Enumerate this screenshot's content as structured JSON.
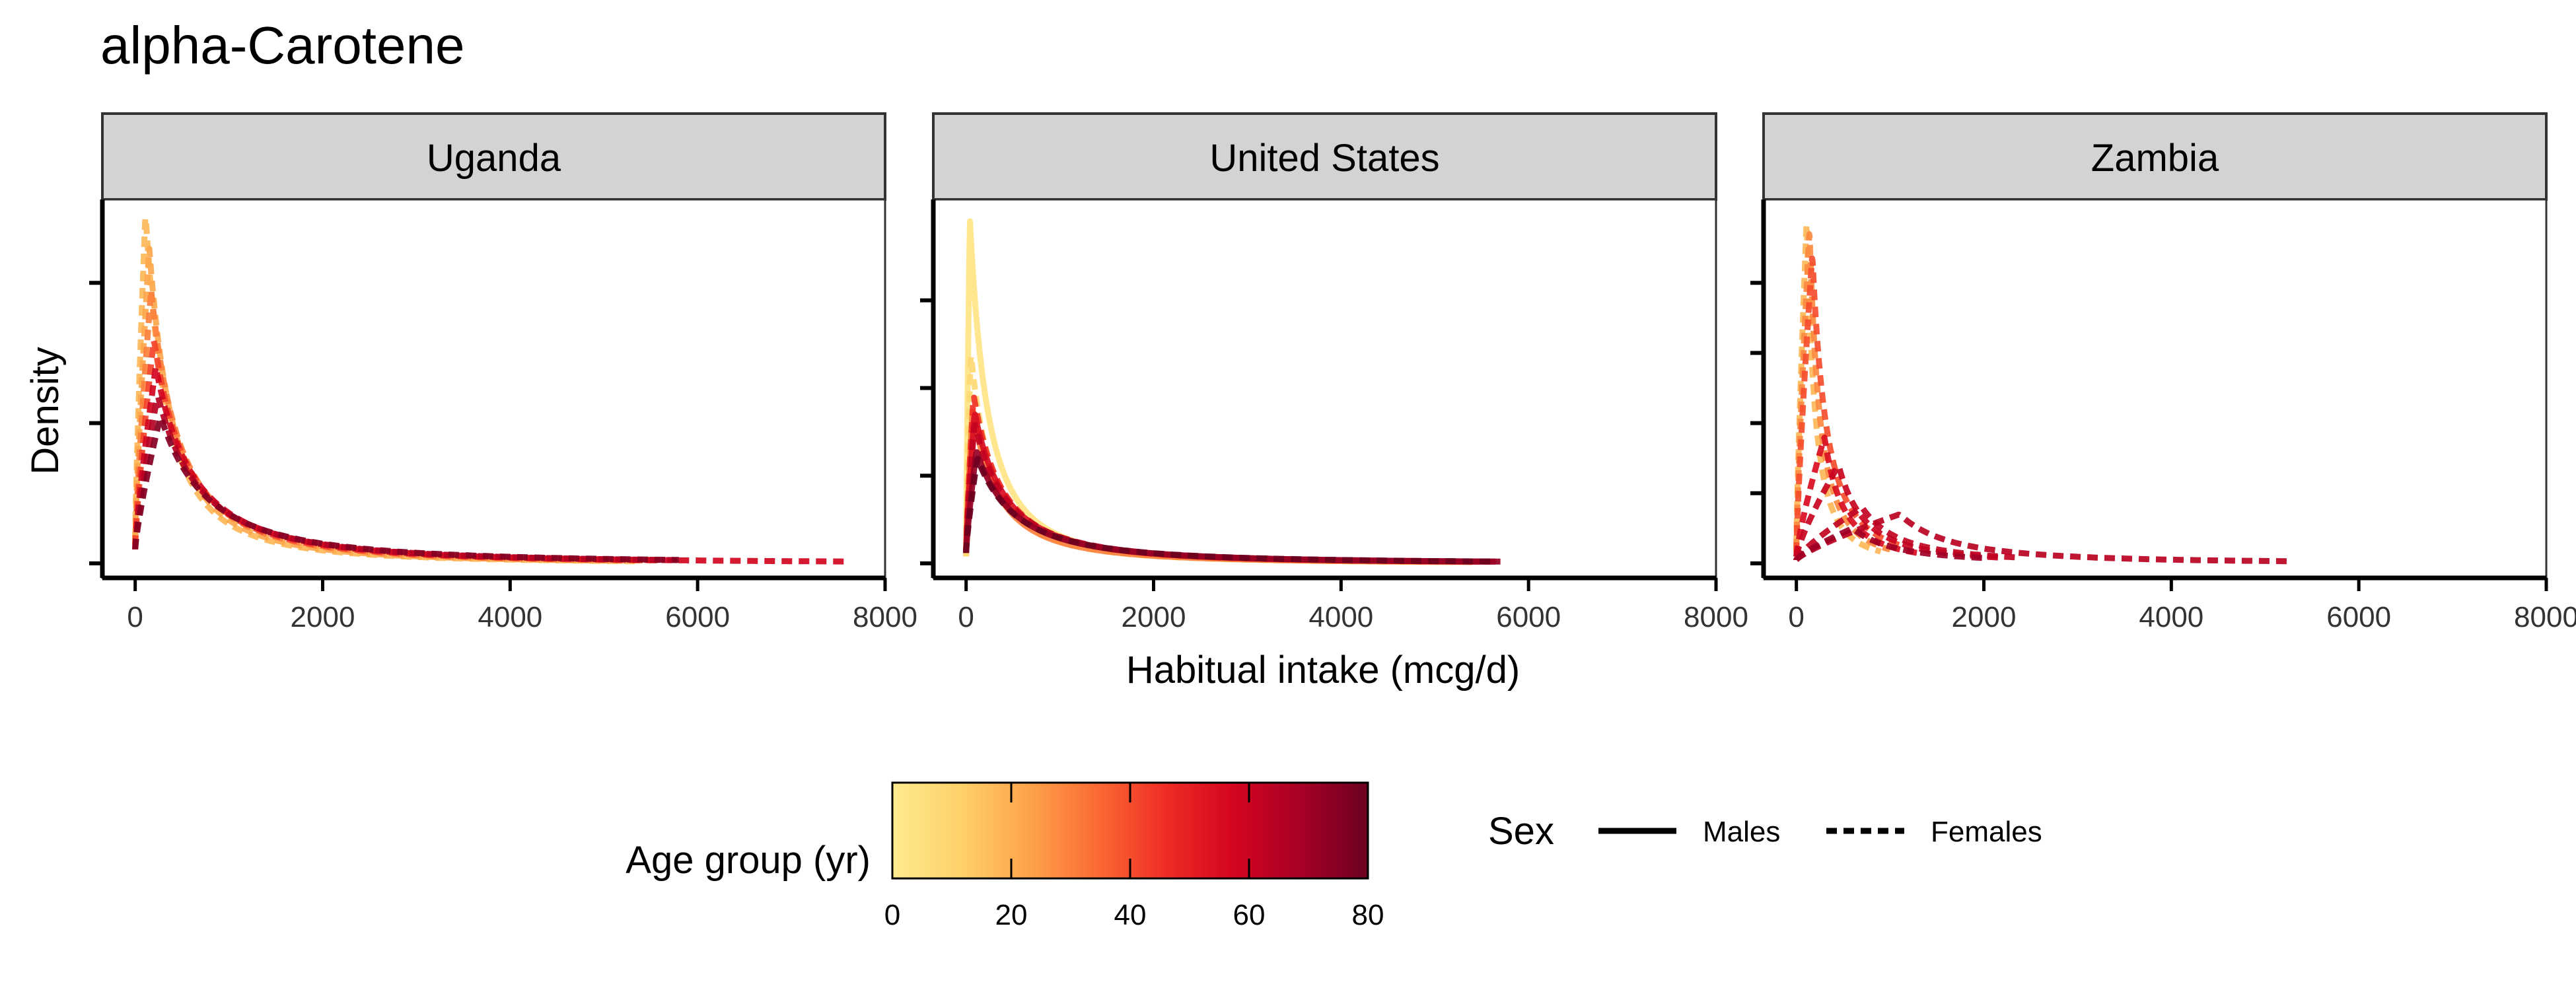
{
  "chart_data": {
    "type": "line",
    "title": "alpha-Carotene",
    "xlabel": "Habitual intake (mcg/d)",
    "ylabel": "Density",
    "xlim": [
      -350,
      8000
    ],
    "x_ticks": [
      0,
      2000,
      4000,
      6000,
      8000
    ],
    "grid": false,
    "colors": {
      "strip_fill": "#d3d3d3",
      "axis": "#000000",
      "gradient": [
        "#ffeb8e",
        "#fed16a",
        "#fda44a",
        "#fb6b34",
        "#ef2e25",
        "#d4051f",
        "#a80026",
        "#6b0020"
      ]
    },
    "legend": {
      "position": "bottom",
      "age_title": "Age group (yr)",
      "age_ticks": [
        0,
        20,
        40,
        60,
        80
      ],
      "age_range": [
        0,
        80
      ],
      "sex_title": "Sex",
      "sex_entries": [
        {
          "label": "Males",
          "linetype": "solid"
        },
        {
          "label": "Females",
          "linetype": "dashed"
        }
      ]
    },
    "panels": [
      {
        "name": "Uganda",
        "ylim": [
          0,
          1.0
        ],
        "y_ticks": [
          0,
          0.4,
          0.8
        ],
        "series": [
          {
            "age": 18,
            "sex": "Females",
            "peak_x": 110,
            "peak": 1.0,
            "start": 0.07,
            "tail": 0.45,
            "xmax": 5400
          },
          {
            "age": 22,
            "sex": "Females",
            "peak_x": 150,
            "peak": 0.9,
            "start": 0.06,
            "tail": 0.5,
            "xmax": 5200
          },
          {
            "age": 30,
            "sex": "Females",
            "peak_x": 170,
            "peak": 0.78,
            "start": 0.05,
            "tail": 0.6,
            "xmax": 5500
          },
          {
            "age": 42,
            "sex": "Females",
            "peak_x": 200,
            "peak": 0.64,
            "start": 0.05,
            "tail": 0.7,
            "xmax": 5600
          },
          {
            "age": 58,
            "sex": "Females",
            "peak_x": 220,
            "peak": 0.56,
            "start": 0.04,
            "tail": 0.8,
            "xmax": 7600
          },
          {
            "age": 65,
            "sex": "Females",
            "peak_x": 240,
            "peak": 0.48,
            "start": 0.04,
            "tail": 0.9,
            "xmax": 5800
          },
          {
            "age": 75,
            "sex": "Females",
            "peak_x": 270,
            "peak": 0.42,
            "start": 0.04,
            "tail": 1.0,
            "xmax": 5800
          }
        ]
      },
      {
        "name": "United States",
        "ylim": [
          0,
          1.0
        ],
        "y_ticks": [
          0,
          0.25,
          0.5,
          0.75
        ],
        "series": [
          {
            "age": 3,
            "sex": "Males",
            "peak_x": 40,
            "peak": 0.98,
            "start": 0.02,
            "tail": 0.38,
            "xmax": 5000
          },
          {
            "age": 8,
            "sex": "Females",
            "peak_x": 50,
            "peak": 0.6,
            "start": 0.02,
            "tail": 0.45,
            "xmax": 5200
          },
          {
            "age": 30,
            "sex": "Males",
            "peak_x": 70,
            "peak": 0.44,
            "start": 0.03,
            "tail": 0.55,
            "xmax": 5400
          },
          {
            "age": 45,
            "sex": "Females",
            "peak_x": 80,
            "peak": 0.48,
            "start": 0.03,
            "tail": 0.6,
            "xmax": 5500
          },
          {
            "age": 55,
            "sex": "Males",
            "peak_x": 90,
            "peak": 0.43,
            "start": 0.03,
            "tail": 0.65,
            "xmax": 5600
          },
          {
            "age": 62,
            "sex": "Females",
            "peak_x": 90,
            "peak": 0.4,
            "start": 0.03,
            "tail": 0.7,
            "xmax": 5650
          },
          {
            "age": 72,
            "sex": "Males",
            "peak_x": 110,
            "peak": 0.32,
            "start": 0.03,
            "tail": 0.8,
            "xmax": 5700
          },
          {
            "age": 80,
            "sex": "Females",
            "peak_x": 120,
            "peak": 0.3,
            "start": 0.03,
            "tail": 0.85,
            "xmax": 5650
          }
        ]
      },
      {
        "name": "Zambia",
        "ylim": [
          0,
          1.0
        ],
        "y_ticks": [
          0,
          0.2,
          0.4,
          0.6,
          0.8
        ],
        "series": [
          {
            "age": 18,
            "sex": "Females",
            "peak_x": 110,
            "peak": 0.98,
            "start": 0.05,
            "tail": 0.18,
            "xmax": 900
          },
          {
            "age": 28,
            "sex": "Females",
            "peak_x": 140,
            "peak": 0.95,
            "start": 0.04,
            "tail": 0.22,
            "xmax": 1000
          },
          {
            "age": 40,
            "sex": "Females",
            "peak_x": 170,
            "peak": 0.88,
            "start": 0.03,
            "tail": 0.3,
            "xmax": 1100
          },
          {
            "age": 55,
            "sex": "Females",
            "peak_x": 300,
            "peak": 0.36,
            "start": 0.02,
            "tail": 0.4,
            "xmax": 1300
          },
          {
            "age": 60,
            "sex": "Females",
            "peak_x": 450,
            "peak": 0.28,
            "start": 0.02,
            "tail": 0.55,
            "xmax": 2200
          },
          {
            "age": 62,
            "sex": "Females",
            "peak_x": 700,
            "peak": 0.16,
            "start": 0.01,
            "tail": 0.8,
            "xmax": 2400
          },
          {
            "age": 64,
            "sex": "Females",
            "peak_x": 1100,
            "peak": 0.14,
            "start": 0.01,
            "tail": 1.1,
            "xmax": 5300
          },
          {
            "age": 70,
            "sex": "Females",
            "peak_x": 600,
            "peak": 0.1,
            "start": 0.01,
            "tail": 0.9,
            "xmax": 2000
          }
        ]
      }
    ]
  }
}
